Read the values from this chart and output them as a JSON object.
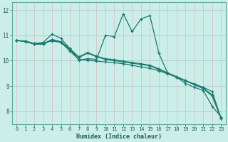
{
  "title": "",
  "xlabel": "Humidex (Indice chaleur)",
  "ylabel": "",
  "bg_color": "#cceee8",
  "plot_bg_color": "#cceee8",
  "line_color": "#1a7a6e",
  "grid_color": "#aadddd",
  "spine_color": "#5aaa99",
  "xlim": [
    -0.5,
    23.5
  ],
  "ylim": [
    7.5,
    12.3
  ],
  "yticks": [
    8,
    9,
    10,
    11,
    12
  ],
  "xticks": [
    0,
    1,
    2,
    3,
    4,
    5,
    6,
    7,
    8,
    9,
    10,
    11,
    12,
    13,
    14,
    15,
    16,
    17,
    18,
    19,
    20,
    21,
    22,
    23
  ],
  "series": [
    {
      "x": [
        0,
        1,
        2,
        3,
        4,
        5,
        6,
        7,
        8,
        9,
        10,
        11,
        12,
        13,
        14,
        15,
        16,
        17,
        18,
        19,
        20,
        21,
        22,
        23
      ],
      "y": [
        10.8,
        10.78,
        10.68,
        10.72,
        11.05,
        10.88,
        10.48,
        10.02,
        10.08,
        10.05,
        11.0,
        10.95,
        11.85,
        11.15,
        11.65,
        11.78,
        10.3,
        9.5,
        9.35,
        9.1,
        8.95,
        8.82,
        8.2,
        7.78
      ]
    },
    {
      "x": [
        0,
        1,
        2,
        3,
        4,
        5,
        6,
        7,
        8,
        9,
        10,
        11,
        12,
        13,
        14,
        15,
        16,
        17,
        18,
        19,
        20,
        21,
        22,
        23
      ],
      "y": [
        10.8,
        10.76,
        10.68,
        10.7,
        10.78,
        10.72,
        10.38,
        10.05,
        10.02,
        9.98,
        9.95,
        9.92,
        9.88,
        9.82,
        9.75,
        9.7,
        9.6,
        9.48,
        9.35,
        9.2,
        9.08,
        8.95,
        8.78,
        7.72
      ]
    },
    {
      "x": [
        0,
        1,
        2,
        3,
        4,
        5,
        6,
        7,
        8,
        9,
        10,
        11,
        12,
        13,
        14,
        15,
        16,
        17,
        18,
        19,
        20,
        21,
        22,
        23
      ],
      "y": [
        10.8,
        10.75,
        10.65,
        10.65,
        10.82,
        10.72,
        10.45,
        10.12,
        10.3,
        10.15,
        10.05,
        10.0,
        9.95,
        9.9,
        9.85,
        9.8,
        9.65,
        9.5,
        9.35,
        9.2,
        9.05,
        8.9,
        8.6,
        7.72
      ]
    },
    {
      "x": [
        0,
        1,
        2,
        3,
        4,
        5,
        6,
        7,
        8,
        9,
        10,
        11,
        12,
        13,
        14,
        15,
        16,
        17,
        18,
        19,
        20,
        21,
        22,
        23
      ],
      "y": [
        10.8,
        10.76,
        10.66,
        10.67,
        10.84,
        10.75,
        10.48,
        10.15,
        10.32,
        10.18,
        10.08,
        10.04,
        9.98,
        9.93,
        9.88,
        9.82,
        9.68,
        9.52,
        9.37,
        9.22,
        9.07,
        8.92,
        8.65,
        7.73
      ]
    }
  ]
}
